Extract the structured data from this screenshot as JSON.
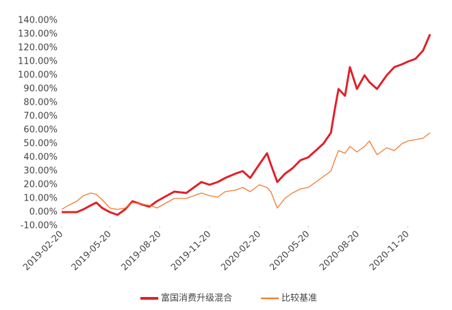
{
  "chart_data": {
    "type": "line",
    "x": [
      "2019-02-20",
      "2019-03-05",
      "2019-03-20",
      "2019-04-01",
      "2019-04-15",
      "2019-04-25",
      "2019-05-06",
      "2019-05-20",
      "2019-06-03",
      "2019-06-17",
      "2019-07-01",
      "2019-07-15",
      "2019-08-01",
      "2019-08-15",
      "2019-09-02",
      "2019-09-16",
      "2019-10-08",
      "2019-10-22",
      "2019-11-05",
      "2019-11-20",
      "2019-12-05",
      "2019-12-19",
      "2020-01-06",
      "2020-01-20",
      "2020-02-03",
      "2020-02-20",
      "2020-03-05",
      "2020-03-12",
      "2020-03-24",
      "2020-04-07",
      "2020-04-21",
      "2020-05-06",
      "2020-05-20",
      "2020-06-03",
      "2020-06-17",
      "2020-07-01",
      "2020-07-08",
      "2020-07-15",
      "2020-07-27",
      "2020-08-05",
      "2020-08-18",
      "2020-09-01",
      "2020-09-10",
      "2020-09-24",
      "2020-10-12",
      "2020-10-26",
      "2020-11-09",
      "2020-11-20",
      "2020-12-04",
      "2020-12-18",
      "2020-12-31"
    ],
    "series": [
      {
        "name": "富国消费升级混合",
        "color": "#e0202a",
        "width": 3,
        "values": [
          0,
          0,
          0,
          2,
          5,
          7,
          3,
          0,
          -2,
          2,
          8,
          6,
          4,
          8,
          12,
          15,
          14,
          18,
          22,
          20,
          22,
          25,
          28,
          30,
          25,
          35,
          43,
          35,
          22,
          28,
          32,
          38,
          40,
          45,
          50,
          58,
          75,
          90,
          85,
          106,
          90,
          100,
          95,
          90,
          100,
          106,
          108,
          110,
          112,
          118,
          130
        ]
      },
      {
        "name": "比较基准",
        "color": "#f07a2a",
        "width": 1.3,
        "values": [
          2,
          5,
          8,
          12,
          14,
          13,
          9,
          3,
          2,
          3,
          7,
          6,
          5,
          3,
          7,
          10,
          10,
          12,
          14,
          12,
          11,
          15,
          16,
          18,
          15,
          20,
          18,
          15,
          3,
          10,
          14,
          17,
          18,
          22,
          26,
          30,
          38,
          45,
          43,
          48,
          44,
          48,
          52,
          42,
          47,
          45,
          50,
          52,
          53,
          54,
          58
        ]
      }
    ],
    "xlim": [
      "2019-02-20",
      "2020-12-31"
    ],
    "xticks": [
      "2019-02-20",
      "2019-05-20",
      "2019-08-20",
      "2019-11-20",
      "2020-02-20",
      "2020-05-20",
      "2020-08-20",
      "2020-11-20"
    ],
    "ylim": [
      -10,
      140
    ],
    "yticks": [
      {
        "value": -10,
        "label": "-10.00%"
      },
      {
        "value": 0,
        "label": "0.00%"
      },
      {
        "value": 10,
        "label": "10.00%"
      },
      {
        "value": 20,
        "label": "20.00%"
      },
      {
        "value": 30,
        "label": "30.00%"
      },
      {
        "value": 40,
        "label": "40.00%"
      },
      {
        "value": 50,
        "label": "50.00%"
      },
      {
        "value": 60,
        "label": "60.00%"
      },
      {
        "value": 70,
        "label": "70.00%"
      },
      {
        "value": 80,
        "label": "80.00%"
      },
      {
        "value": 90,
        "label": "90.00%"
      },
      {
        "value": 100,
        "label": "100.00%"
      },
      {
        "value": 110,
        "label": "110.00%"
      },
      {
        "value": 120,
        "label": "120.00%"
      },
      {
        "value": 130,
        "label": "130.00%"
      },
      {
        "value": 140,
        "label": "140.00%"
      }
    ],
    "legend": "bottom"
  }
}
